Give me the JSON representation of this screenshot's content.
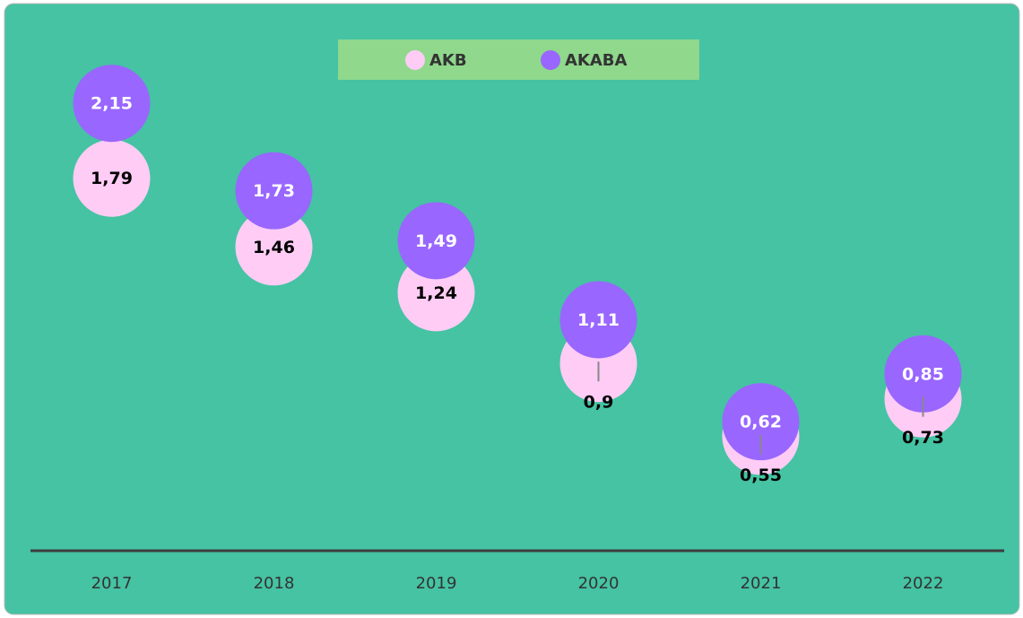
{
  "chart_data": {
    "type": "scatter",
    "categories": [
      "2017",
      "2018",
      "2019",
      "2020",
      "2021",
      "2022"
    ],
    "series": [
      {
        "name": "AKB",
        "color": "#ffccf5",
        "values": [
          1.79,
          1.46,
          1.24,
          0.9,
          0.55,
          0.73
        ],
        "value_labels": [
          "1,79",
          "1,46",
          "1,24",
          "0,9",
          "0,55",
          "0,73"
        ]
      },
      {
        "name": "AKABA",
        "color": "#9966ff",
        "values": [
          2.15,
          1.73,
          1.49,
          1.11,
          0.62,
          0.85
        ],
        "value_labels": [
          "2,15",
          "1,73",
          "1,49",
          "1,11",
          "0,62",
          "0,85"
        ]
      }
    ],
    "legend": "top"
  }
}
